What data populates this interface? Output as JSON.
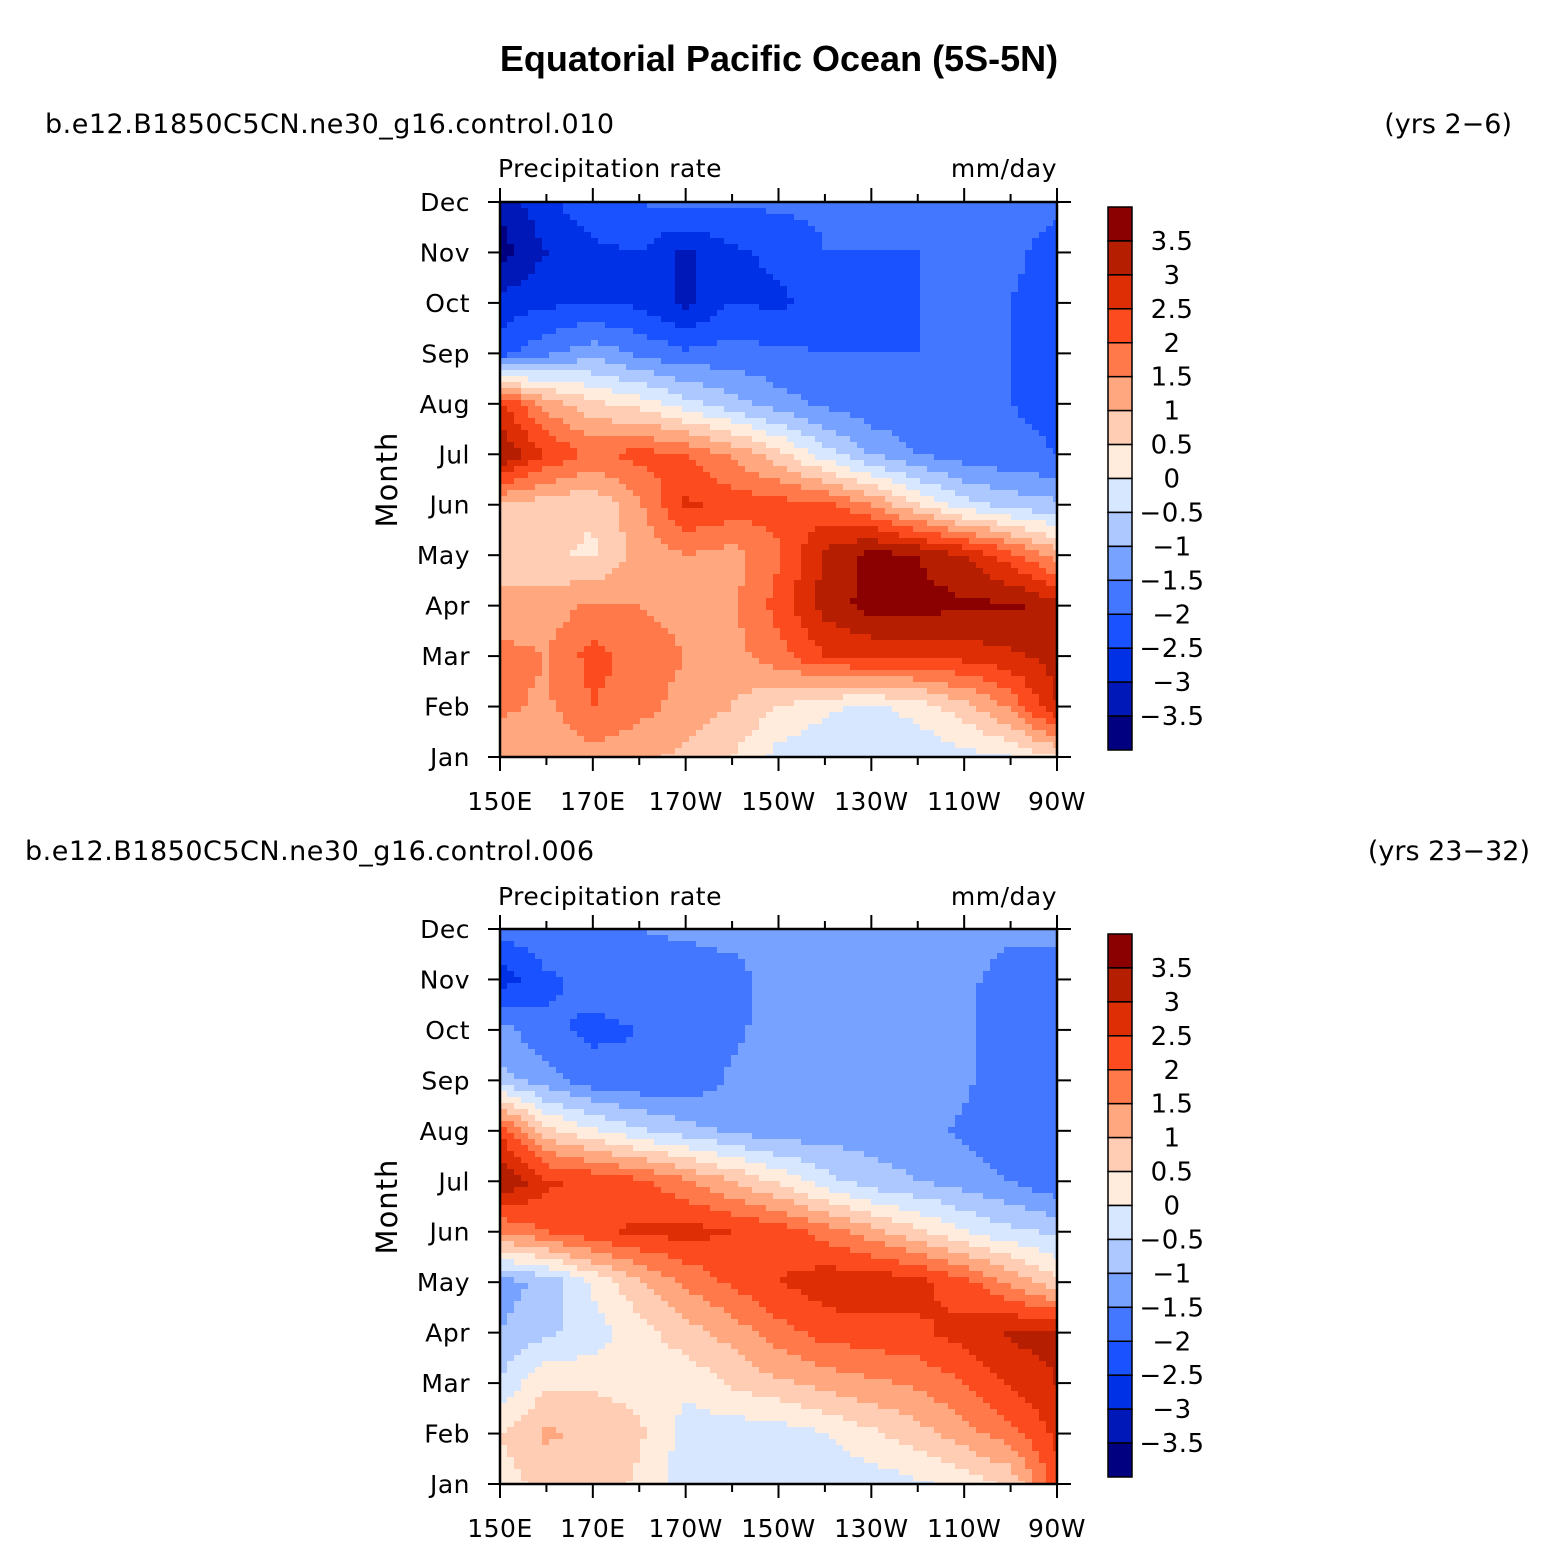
{
  "title": "Equatorial Pacific Ocean (5S-5N)",
  "chart_data": [
    {
      "type": "heatmap",
      "case_name": "b.e12.B1850C5CN.ne30_g16.control.010",
      "years": "(yrs 2−6)",
      "variable": "Precipitation rate",
      "units": "mm/day",
      "ylabel": "Month",
      "x_ticks": [
        "150E",
        "170E",
        "170W",
        "150W",
        "130W",
        "110W",
        "90W"
      ],
      "y_ticks": [
        "Jan",
        "Feb",
        "Mar",
        "Apr",
        "May",
        "Jun",
        "Jul",
        "Aug",
        "Sep",
        "Oct",
        "Nov",
        "Dec"
      ],
      "x_range_deg_east": [
        150,
        270
      ],
      "colorbar_labels": [
        "3.5",
        "3",
        "2.5",
        "2",
        "1.5",
        "1",
        "0.5",
        "0",
        "−0.5",
        "−1",
        "−1.5",
        "−2",
        "−2.5",
        "−3",
        "−3.5"
      ],
      "lon": [
        150,
        160,
        170,
        180,
        190,
        200,
        210,
        220,
        230,
        240,
        250,
        260,
        270
      ],
      "values": [
        [
          1.2,
          1.0,
          1.3,
          1.1,
          0.9,
          0.5,
          -0.2,
          -0.4,
          -0.5,
          -0.4,
          -0.2,
          0.0,
          0.5
        ],
        [
          1.6,
          1.4,
          2.0,
          1.7,
          1.3,
          1.0,
          0.5,
          0.1,
          -0.1,
          0.2,
          0.8,
          1.6,
          3.0
        ],
        [
          1.7,
          1.5,
          2.2,
          1.8,
          1.5,
          1.3,
          1.8,
          2.5,
          2.6,
          2.6,
          2.7,
          2.9,
          3.2
        ],
        [
          1.1,
          1.2,
          1.6,
          1.5,
          1.3,
          1.4,
          2.2,
          3.2,
          3.7,
          3.7,
          3.6,
          3.6,
          3.3
        ],
        [
          0.8,
          0.6,
          0.4,
          1.2,
          1.5,
          1.3,
          1.9,
          3.1,
          3.7,
          3.5,
          3.0,
          2.2,
          1.2
        ],
        [
          1.0,
          0.7,
          0.6,
          1.4,
          2.6,
          2.3,
          2.2,
          2.1,
          1.5,
          0.5,
          -0.3,
          -0.7,
          -0.9
        ],
        [
          3.5,
          2.5,
          1.9,
          2.2,
          2.0,
          1.4,
          0.7,
          -0.3,
          -1.0,
          -1.5,
          -1.8,
          -1.9,
          -2.0
        ],
        [
          2.6,
          1.3,
          0.6,
          0.3,
          -0.3,
          -0.8,
          -1.3,
          -1.6,
          -1.9,
          -1.9,
          -2.0,
          -2.0,
          -2.1
        ],
        [
          -2.2,
          -1.6,
          -1.2,
          -1.6,
          -1.9,
          -1.8,
          -1.9,
          -2.0,
          -2.0,
          -2.0,
          -2.0,
          -2.0,
          -2.1
        ],
        [
          -2.8,
          -2.6,
          -2.5,
          -2.6,
          -3.1,
          -2.5,
          -2.6,
          -2.3,
          -2.1,
          -2.0,
          -2.0,
          -2.0,
          -2.2
        ],
        [
          -3.7,
          -3.0,
          -2.6,
          -2.5,
          -3.1,
          -2.6,
          -2.4,
          -2.0,
          -2.0,
          -2.0,
          -2.0,
          -1.9,
          -2.2
        ],
        [
          -3.4,
          -2.6,
          -2.2,
          -2.0,
          -1.8,
          -1.9,
          -1.9,
          -1.9,
          -1.8,
          -1.8,
          -1.9,
          -1.8,
          -1.9
        ]
      ]
    },
    {
      "type": "heatmap",
      "case_name": "b.e12.B1850C5CN.ne30_g16.control.006",
      "years": "(yrs 23−32)",
      "variable": "Precipitation rate",
      "units": "mm/day",
      "ylabel": "Month",
      "x_ticks": [
        "150E",
        "170E",
        "170W",
        "150W",
        "130W",
        "110W",
        "90W"
      ],
      "y_ticks": [
        "Jan",
        "Feb",
        "Mar",
        "Apr",
        "May",
        "Jun",
        "Jul",
        "Aug",
        "Sep",
        "Oct",
        "Nov",
        "Dec"
      ],
      "x_range_deg_east": [
        150,
        270
      ],
      "colorbar_labels": [
        "3.5",
        "3",
        "2.5",
        "2",
        "1.5",
        "1",
        "0.5",
        "0",
        "−0.5",
        "−1",
        "−1.5",
        "−2",
        "−2.5",
        "−3",
        "−3.5"
      ],
      "lon": [
        150,
        160,
        170,
        180,
        190,
        200,
        210,
        220,
        230,
        240,
        250,
        260,
        270
      ],
      "values": [
        [
          0.3,
          0.6,
          0.8,
          0.4,
          -0.3,
          -0.4,
          -0.5,
          -0.4,
          -0.3,
          -0.1,
          0.2,
          0.6,
          2.3
        ],
        [
          0.5,
          1.1,
          0.9,
          0.6,
          -0.2,
          -0.3,
          -0.3,
          0.0,
          0.4,
          0.8,
          1.3,
          1.8,
          2.6
        ],
        [
          -0.4,
          0.4,
          0.4,
          0.3,
          0.1,
          0.6,
          0.9,
          1.2,
          1.4,
          1.6,
          2.0,
          2.6,
          3.0
        ],
        [
          -1.0,
          -0.6,
          -0.3,
          0.3,
          0.8,
          1.2,
          1.8,
          2.2,
          2.3,
          2.4,
          2.7,
          3.1,
          3.2
        ],
        [
          -1.2,
          -0.9,
          0.1,
          0.9,
          1.6,
          2.1,
          2.5,
          2.8,
          2.9,
          2.7,
          2.2,
          1.4,
          0.6
        ],
        [
          1.5,
          2.0,
          2.4,
          2.6,
          2.7,
          2.5,
          2.3,
          1.8,
          1.2,
          0.6,
          0.0,
          -0.4,
          -0.6
        ],
        [
          3.6,
          2.6,
          2.4,
          2.1,
          1.6,
          1.0,
          0.4,
          -0.3,
          -0.8,
          -1.0,
          -1.2,
          -1.5,
          -1.9
        ],
        [
          2.4,
          0.7,
          0.1,
          -0.4,
          -0.8,
          -1.1,
          -1.3,
          -1.3,
          -1.2,
          -1.3,
          -1.6,
          -1.9,
          -2.0
        ],
        [
          -0.8,
          -1.3,
          -1.8,
          -1.9,
          -1.9,
          -1.4,
          -1.3,
          -1.3,
          -1.3,
          -1.3,
          -1.4,
          -1.9,
          -2.0
        ],
        [
          -1.3,
          -1.9,
          -2.1,
          -2.0,
          -1.9,
          -1.6,
          -1.3,
          -1.3,
          -1.3,
          -1.3,
          -1.4,
          -1.9,
          -2.0
        ],
        [
          -2.8,
          -2.1,
          -1.8,
          -1.8,
          -1.8,
          -1.7,
          -1.3,
          -1.3,
          -1.3,
          -1.3,
          -1.4,
          -1.7,
          -1.8
        ],
        [
          -1.8,
          -1.6,
          -1.5,
          -1.5,
          -1.4,
          -1.3,
          -1.3,
          -1.3,
          -1.2,
          -1.2,
          -1.3,
          -1.4,
          -1.3
        ]
      ]
    }
  ],
  "colors": {
    "palette": [
      "#000080",
      "#0018b8",
      "#0031e6",
      "#1a52ff",
      "#4477ff",
      "#77a2ff",
      "#adc8ff",
      "#d7e7ff",
      "#ffecdc",
      "#ffcdb4",
      "#ffa77e",
      "#ff794a",
      "#fc4b1e",
      "#dd2e06",
      "#b51e00",
      "#8b0000"
    ],
    "levels": [
      -3.5,
      -3,
      -2.5,
      -2,
      -1.5,
      -1,
      -0.5,
      0,
      0.5,
      1,
      1.5,
      2,
      2.5,
      3,
      3.5
    ]
  }
}
